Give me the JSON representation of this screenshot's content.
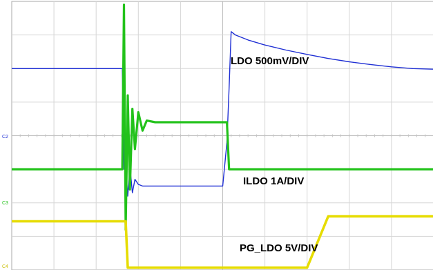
{
  "chart_data": {
    "type": "line",
    "grid": true,
    "x_divisions": 10,
    "y_divisions": 8,
    "x": [
      0,
      2.5,
      2.62,
      2.66,
      2.7,
      2.75,
      2.8,
      2.86,
      2.92,
      3.0,
      3.1,
      3.2,
      3.4,
      3.8,
      4.5,
      5.0,
      5.1,
      5.15,
      5.2,
      5.3,
      5.6,
      6.0,
      6.5,
      7.0,
      7.5,
      8.0,
      8.5,
      9.0,
      9.5,
      10
    ],
    "series": [
      {
        "name": "LDO 500mV/DIV",
        "color": "#1f2fd4",
        "values": [
          6.0,
          6.0,
          6.0,
          3.0,
          3.1,
          2.2,
          3.1,
          2.3,
          2.7,
          2.55,
          2.5,
          2.5,
          2.5,
          2.5,
          2.5,
          2.5,
          3.8,
          5.4,
          7.1,
          7.0,
          6.85,
          6.7,
          6.55,
          6.42,
          6.3,
          6.2,
          6.12,
          6.05,
          6.0,
          5.98
        ]
      },
      {
        "name": "ILDO 1A/DIV",
        "color": "#22c21a",
        "values": [
          3.0,
          3.0,
          3.0,
          7.9,
          1.2,
          5.2,
          2.4,
          4.8,
          3.6,
          4.7,
          4.15,
          4.45,
          4.4,
          4.4,
          4.4,
          4.4,
          4.4,
          3.0,
          3.0,
          3.0,
          3.0,
          3.0,
          3.0,
          3.0,
          3.0,
          3.0,
          3.0,
          3.0,
          3.0,
          3.0
        ]
      },
      {
        "name": "PG_LDO 5V/DIV",
        "color": "#e6dc00",
        "values": [
          1.45,
          1.45,
          1.45,
          1.45,
          1.45,
          0.07,
          0.07,
          0.07,
          0.07,
          0.07,
          0.07,
          0.07,
          0.07,
          0.07,
          0.07,
          0.07,
          0.07,
          0.07,
          0.07,
          0.07,
          0.07,
          0.07,
          0.07,
          0.07,
          1.6,
          1.6,
          1.6,
          1.6,
          1.6,
          1.6
        ]
      }
    ],
    "annotations": [
      "LDO 500mV/DIV",
      "ILDO 1A/DIV",
      "PG_LDO 5V/DIV"
    ],
    "channel_markers": [
      "C2",
      "C3",
      "C4"
    ],
    "marker_colors": [
      "#1f2fd4",
      "#22c21a",
      "#c8be00"
    ]
  }
}
